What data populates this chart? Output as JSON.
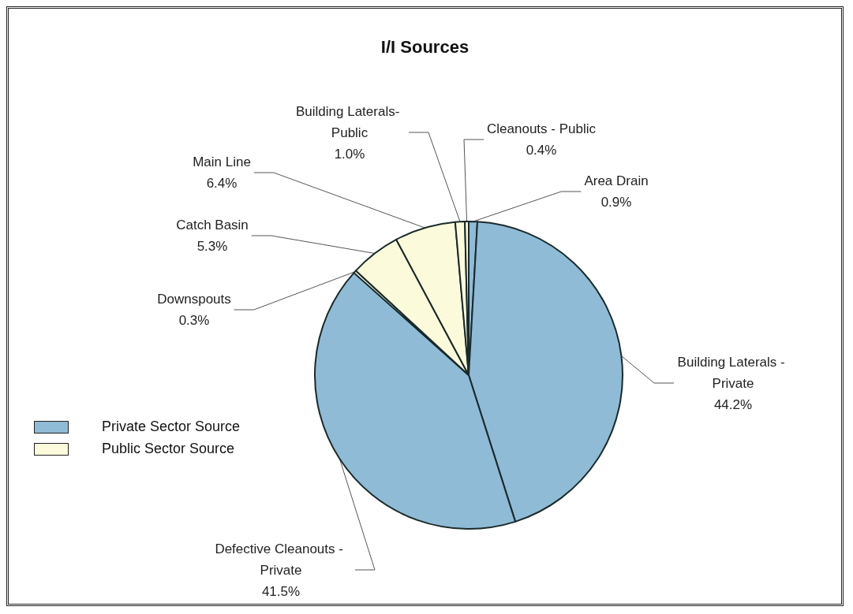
{
  "chart_data": {
    "type": "pie",
    "title": "I/I Sources",
    "categories": [
      "Area Drain",
      "Building Laterals - Private",
      "Defective Cleanouts - Private",
      "Downspouts",
      "Catch Basin",
      "Main Line",
      "Building Laterals- Public",
      "Cleanouts - Public"
    ],
    "values": [
      0.9,
      44.2,
      41.5,
      0.3,
      5.3,
      6.4,
      1.0,
      0.4
    ],
    "value_labels": [
      "0.9%",
      "44.2%",
      "41.5%",
      "0.3%",
      "5.3%",
      "6.4%",
      "1.0%",
      "0.4%"
    ],
    "colors": [
      "#8fbbd6",
      "#8fbbd6",
      "#8fbbd6",
      "#fbfbdc",
      "#fbfbdc",
      "#fbfbdc",
      "#fbfbdc",
      "#fbfbdc"
    ],
    "annotations": [
      "Private Sector Source",
      "Public Sector Source"
    ]
  }
}
